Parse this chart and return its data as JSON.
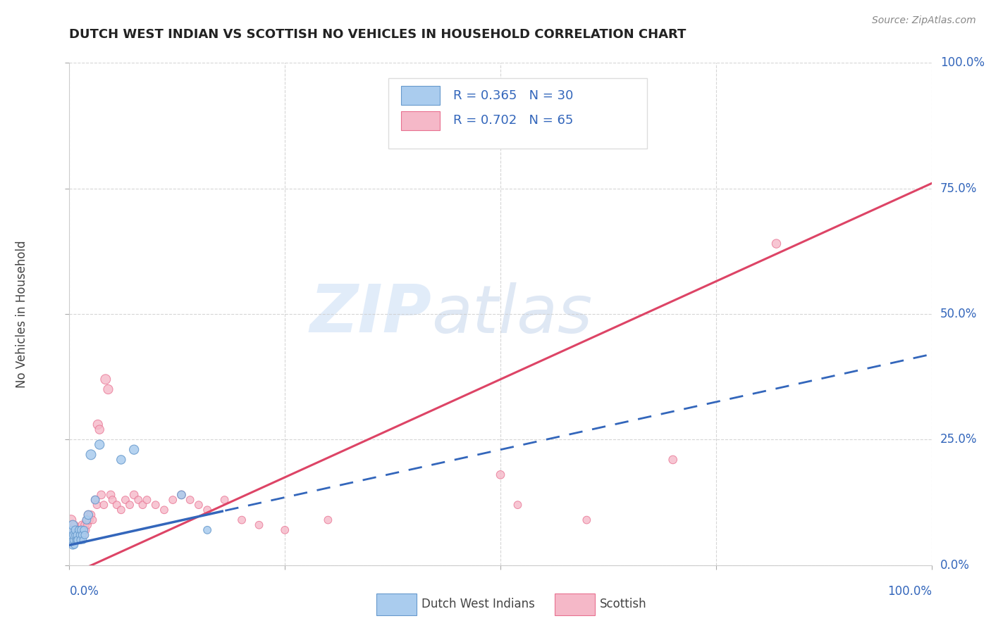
{
  "title": "DUTCH WEST INDIAN VS SCOTTISH NO VEHICLES IN HOUSEHOLD CORRELATION CHART",
  "source": "Source: ZipAtlas.com",
  "ylabel": "No Vehicles in Household",
  "xlim": [
    0.0,
    1.0
  ],
  "ylim": [
    0.0,
    1.0
  ],
  "xticks": [
    0.0,
    0.25,
    0.5,
    0.75,
    1.0
  ],
  "yticks": [
    0.0,
    0.25,
    0.5,
    0.75,
    1.0
  ],
  "watermark_zip": "ZIP",
  "watermark_atlas": "atlas",
  "blue_R": 0.365,
  "blue_N": 30,
  "pink_R": 0.702,
  "pink_N": 65,
  "blue_scatter_color": "#aaccee",
  "blue_scatter_edge": "#6699cc",
  "pink_scatter_color": "#f5b8c8",
  "pink_scatter_edge": "#e87090",
  "blue_line_color": "#3366bb",
  "pink_line_color": "#dd4466",
  "legend_label_blue": "Dutch West Indians",
  "legend_label_pink": "Scottish",
  "blue_line_slope": 0.38,
  "blue_line_intercept": 0.04,
  "pink_line_slope": 0.78,
  "pink_line_intercept": -0.02,
  "blue_points_x": [
    0.002,
    0.003,
    0.003,
    0.004,
    0.004,
    0.005,
    0.005,
    0.006,
    0.007,
    0.007,
    0.008,
    0.009,
    0.01,
    0.011,
    0.012,
    0.013,
    0.014,
    0.015,
    0.016,
    0.017,
    0.018,
    0.02,
    0.022,
    0.025,
    0.03,
    0.035,
    0.06,
    0.075,
    0.13,
    0.16
  ],
  "blue_points_y": [
    0.05,
    0.06,
    0.07,
    0.04,
    0.08,
    0.05,
    0.06,
    0.04,
    0.06,
    0.07,
    0.05,
    0.06,
    0.05,
    0.07,
    0.06,
    0.05,
    0.07,
    0.06,
    0.05,
    0.07,
    0.06,
    0.09,
    0.1,
    0.22,
    0.13,
    0.24,
    0.21,
    0.23,
    0.14,
    0.07
  ],
  "blue_sizes": [
    120,
    80,
    60,
    70,
    90,
    60,
    70,
    50,
    60,
    70,
    50,
    60,
    70,
    60,
    50,
    60,
    70,
    60,
    50,
    60,
    60,
    70,
    80,
    100,
    70,
    90,
    80,
    90,
    70,
    60
  ],
  "pink_points_x": [
    0.002,
    0.002,
    0.003,
    0.003,
    0.004,
    0.004,
    0.005,
    0.005,
    0.006,
    0.007,
    0.007,
    0.008,
    0.008,
    0.009,
    0.01,
    0.011,
    0.012,
    0.013,
    0.014,
    0.015,
    0.016,
    0.017,
    0.018,
    0.019,
    0.02,
    0.021,
    0.022,
    0.023,
    0.025,
    0.027,
    0.03,
    0.032,
    0.033,
    0.035,
    0.037,
    0.04,
    0.042,
    0.045,
    0.048,
    0.05,
    0.055,
    0.06,
    0.065,
    0.07,
    0.075,
    0.08,
    0.085,
    0.09,
    0.1,
    0.11,
    0.12,
    0.13,
    0.14,
    0.15,
    0.16,
    0.18,
    0.2,
    0.22,
    0.25,
    0.3,
    0.5,
    0.52,
    0.6,
    0.7,
    0.82
  ],
  "pink_points_y": [
    0.07,
    0.09,
    0.05,
    0.08,
    0.06,
    0.07,
    0.05,
    0.06,
    0.08,
    0.06,
    0.07,
    0.05,
    0.06,
    0.07,
    0.05,
    0.07,
    0.06,
    0.05,
    0.07,
    0.08,
    0.07,
    0.06,
    0.08,
    0.07,
    0.09,
    0.08,
    0.1,
    0.09,
    0.1,
    0.09,
    0.13,
    0.12,
    0.28,
    0.27,
    0.14,
    0.12,
    0.37,
    0.35,
    0.14,
    0.13,
    0.12,
    0.11,
    0.13,
    0.12,
    0.14,
    0.13,
    0.12,
    0.13,
    0.12,
    0.11,
    0.13,
    0.14,
    0.13,
    0.12,
    0.11,
    0.13,
    0.09,
    0.08,
    0.07,
    0.09,
    0.18,
    0.12,
    0.09,
    0.21,
    0.64
  ],
  "pink_sizes": [
    120,
    100,
    90,
    80,
    70,
    80,
    60,
    70,
    60,
    70,
    80,
    60,
    70,
    60,
    60,
    70,
    60,
    50,
    60,
    70,
    60,
    60,
    70,
    60,
    70,
    60,
    80,
    70,
    70,
    60,
    70,
    60,
    90,
    80,
    70,
    60,
    100,
    90,
    70,
    60,
    60,
    60,
    60,
    60,
    70,
    60,
    60,
    60,
    60,
    60,
    60,
    70,
    60,
    60,
    60,
    60,
    60,
    60,
    60,
    60,
    70,
    60,
    60,
    70,
    80
  ]
}
